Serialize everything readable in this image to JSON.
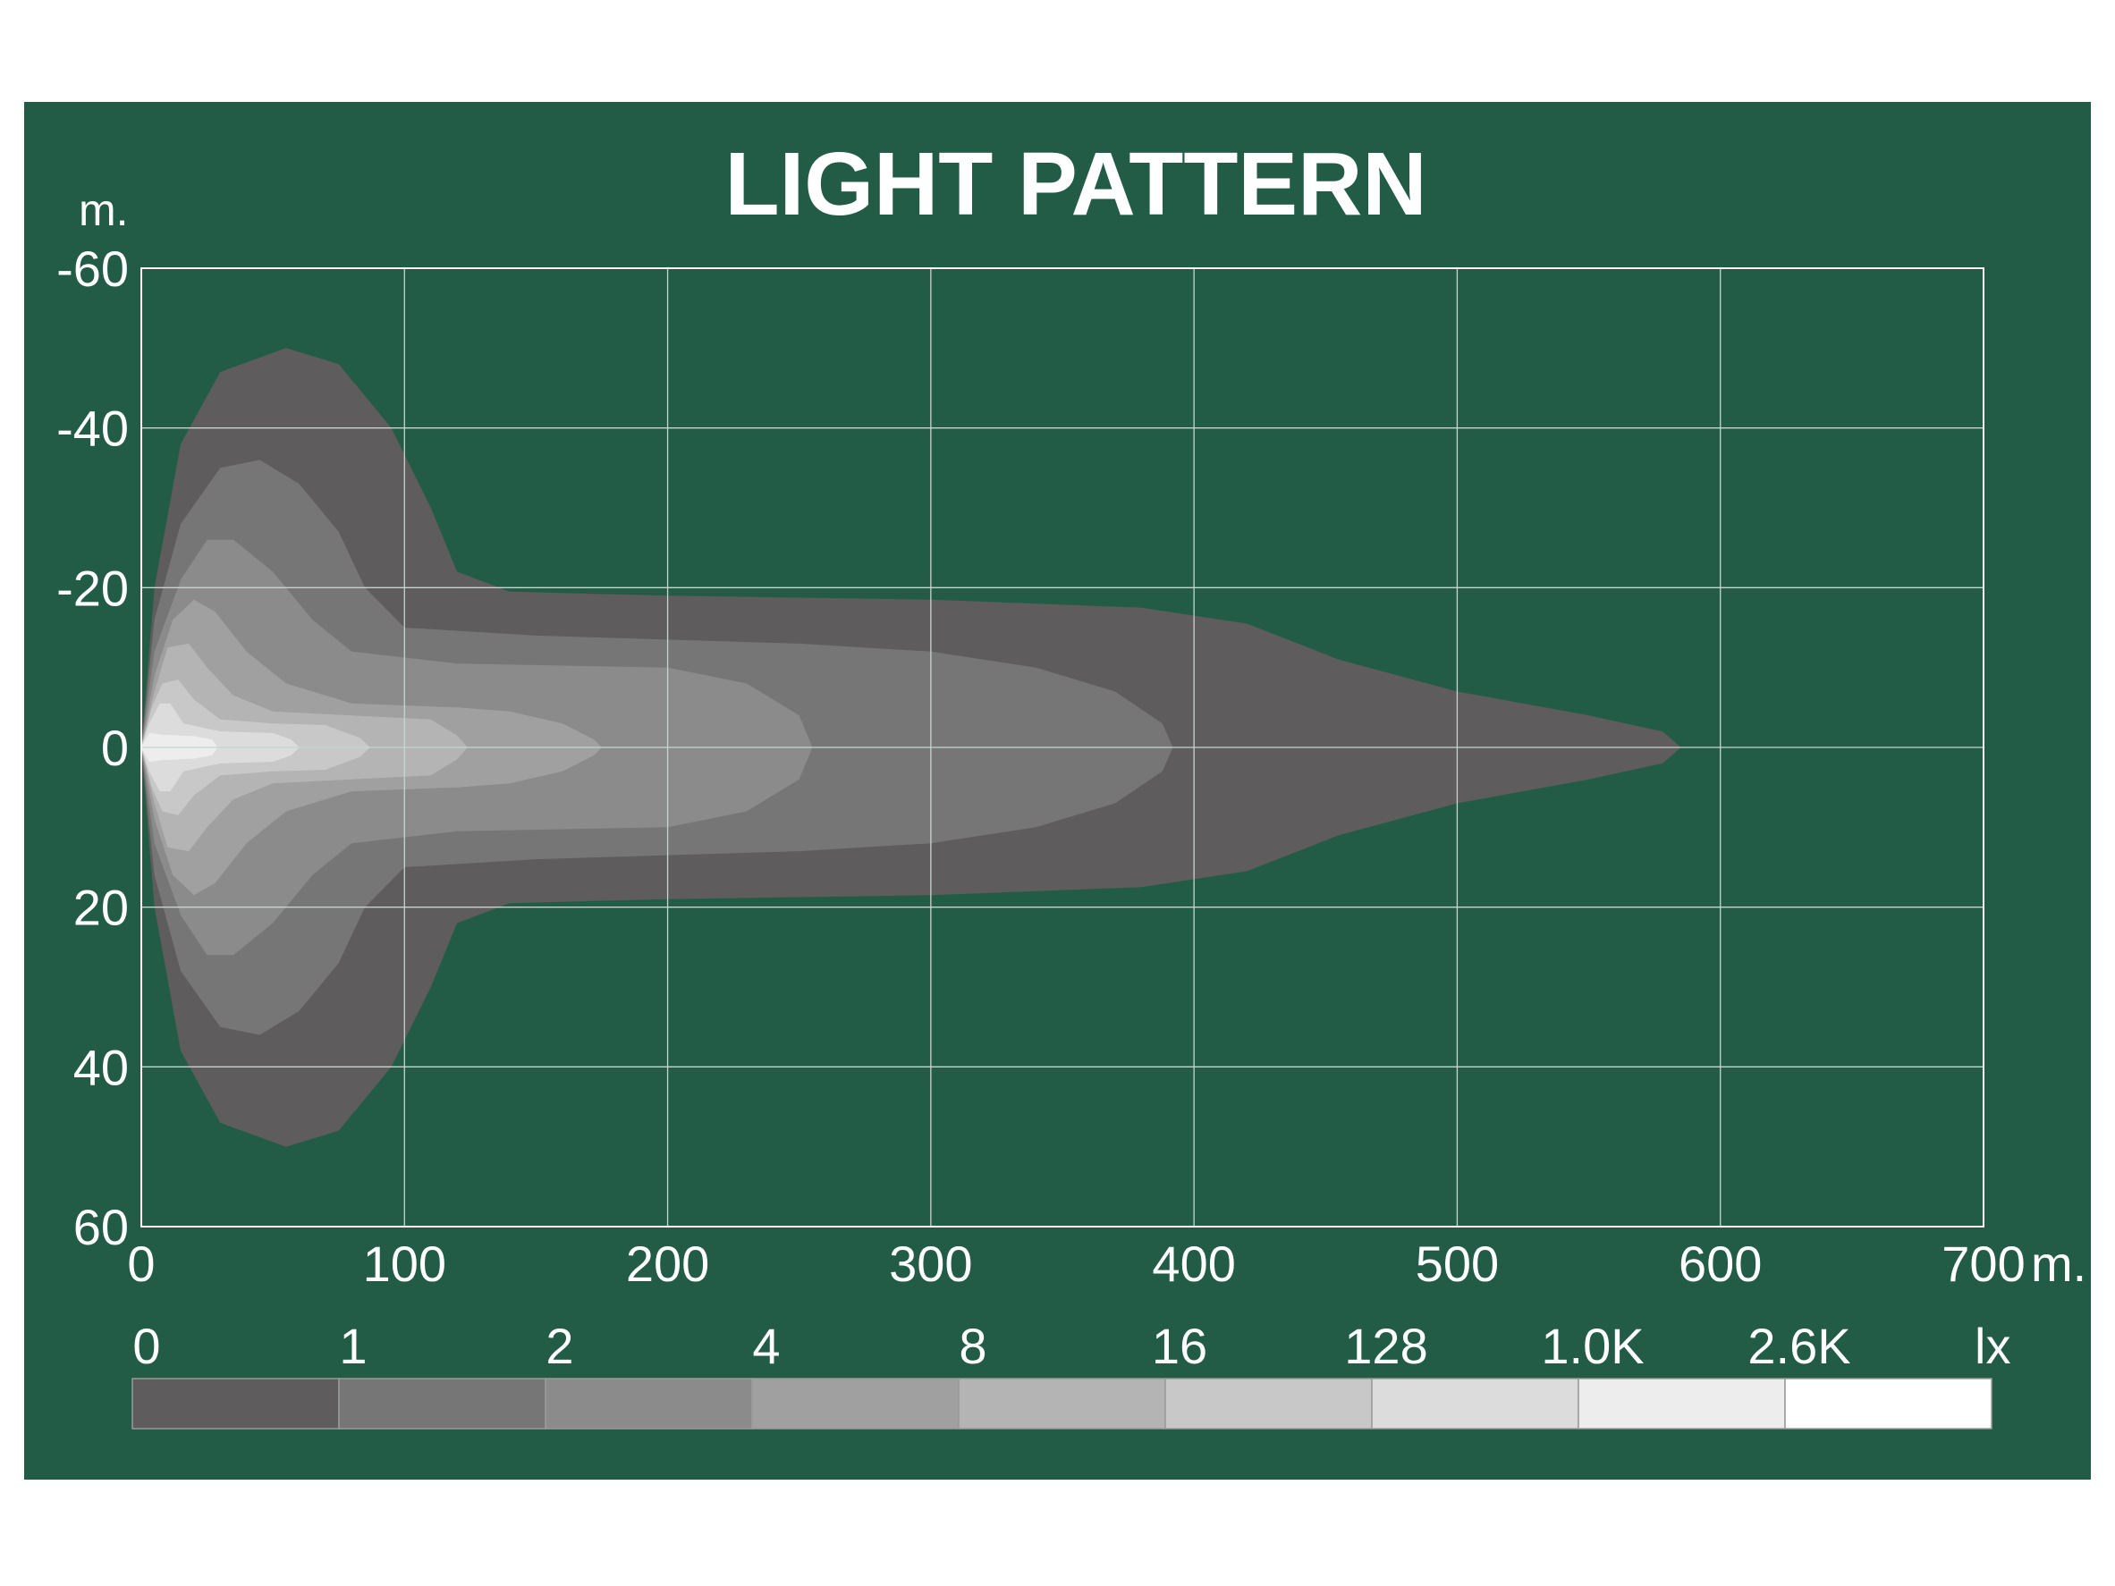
{
  "chart_data": {
    "type": "heatmap",
    "title": "LIGHT PATTERN",
    "x_unit": "m.",
    "y_unit": "m.",
    "xlim": [
      0,
      700
    ],
    "ylim": [
      -60,
      60
    ],
    "y_inverted": true,
    "x_ticks": [
      "0",
      "100",
      "200",
      "300",
      "400",
      "500",
      "600",
      "700"
    ],
    "y_ticks": [
      "-60",
      "-40",
      "-20",
      "0",
      "20",
      "40",
      "60"
    ],
    "grid": true,
    "legend": {
      "position": "bottom",
      "unit": "lx",
      "labels": [
        "0",
        "1",
        "2",
        "4",
        "8",
        "16",
        "128",
        "1.0K",
        "2.6K"
      ],
      "colors": [
        "#5e5c5c",
        "#767676",
        "#8b8b8b",
        "#a0a0a0",
        "#b4b4b4",
        "#c8c8c8",
        "#dcdcdc",
        "#ededed",
        "#ffffff"
      ]
    },
    "colors": {
      "background": "#235c46",
      "grid": "#c8d4cf",
      "text": "#ffffff"
    },
    "series": [
      {
        "level": "1",
        "color": "#5e5c5c",
        "profile": [
          [
            0,
            0
          ],
          [
            5,
            20
          ],
          [
            15,
            38
          ],
          [
            30,
            47
          ],
          [
            55,
            50
          ],
          [
            75,
            48
          ],
          [
            95,
            40
          ],
          [
            110,
            30
          ],
          [
            120,
            22
          ],
          [
            140,
            19.5
          ],
          [
            200,
            19
          ],
          [
            300,
            18.5
          ],
          [
            380,
            17.5
          ],
          [
            420,
            15.5
          ],
          [
            455,
            11
          ],
          [
            500,
            7
          ],
          [
            550,
            4
          ],
          [
            578,
            2
          ],
          [
            585,
            0
          ]
        ]
      },
      {
        "level": "2",
        "color": "#767676",
        "profile": [
          [
            0,
            0
          ],
          [
            5,
            16
          ],
          [
            15,
            28
          ],
          [
            30,
            35
          ],
          [
            45,
            36
          ],
          [
            60,
            33
          ],
          [
            75,
            27
          ],
          [
            85,
            20
          ],
          [
            100,
            15
          ],
          [
            150,
            14
          ],
          [
            200,
            13.5
          ],
          [
            250,
            13
          ],
          [
            300,
            12
          ],
          [
            340,
            10
          ],
          [
            370,
            7
          ],
          [
            388,
            3
          ],
          [
            392,
            0
          ]
        ]
      },
      {
        "level": "4",
        "color": "#8b8b8b",
        "profile": [
          [
            0,
            0
          ],
          [
            5,
            12
          ],
          [
            15,
            21
          ],
          [
            25,
            26
          ],
          [
            35,
            26
          ],
          [
            50,
            22
          ],
          [
            65,
            16
          ],
          [
            80,
            12
          ],
          [
            120,
            10.5
          ],
          [
            200,
            10
          ],
          [
            230,
            8
          ],
          [
            250,
            4
          ],
          [
            255,
            0
          ]
        ]
      },
      {
        "level": "8",
        "color": "#a0a0a0",
        "profile": [
          [
            0,
            0
          ],
          [
            5,
            9
          ],
          [
            12,
            16
          ],
          [
            20,
            18.5
          ],
          [
            28,
            17
          ],
          [
            40,
            12
          ],
          [
            55,
            8
          ],
          [
            80,
            5.5
          ],
          [
            120,
            5
          ],
          [
            140,
            4.5
          ],
          [
            160,
            3
          ],
          [
            172,
            1
          ],
          [
            175,
            0
          ]
        ]
      },
      {
        "level": "16",
        "color": "#b4b4b4",
        "profile": [
          [
            0,
            0
          ],
          [
            5,
            7
          ],
          [
            10,
            12.5
          ],
          [
            18,
            13
          ],
          [
            25,
            10
          ],
          [
            35,
            6.5
          ],
          [
            50,
            4.5
          ],
          [
            80,
            4
          ],
          [
            110,
            3.5
          ],
          [
            120,
            1.5
          ],
          [
            124,
            0
          ]
        ]
      },
      {
        "level": "128",
        "color": "#c8c8c8",
        "profile": [
          [
            0,
            0
          ],
          [
            4,
            5
          ],
          [
            8,
            8
          ],
          [
            14,
            8.5
          ],
          [
            20,
            6
          ],
          [
            30,
            3.5
          ],
          [
            50,
            3
          ],
          [
            70,
            2.8
          ],
          [
            83,
            1.2
          ],
          [
            87,
            0
          ]
        ]
      },
      {
        "level": "1.0K",
        "color": "#dcdcdc",
        "profile": [
          [
            0,
            0
          ],
          [
            3,
            3
          ],
          [
            7,
            5.5
          ],
          [
            11,
            5.5
          ],
          [
            16,
            3
          ],
          [
            30,
            2
          ],
          [
            50,
            1.8
          ],
          [
            57,
            1
          ],
          [
            60,
            0
          ]
        ]
      },
      {
        "level": "2.6K",
        "color": "#ededed",
        "profile": [
          [
            0,
            0
          ],
          [
            3,
            1.8
          ],
          [
            8,
            1.6
          ],
          [
            20,
            1.4
          ],
          [
            27,
            1
          ],
          [
            29,
            0
          ]
        ]
      }
    ]
  }
}
